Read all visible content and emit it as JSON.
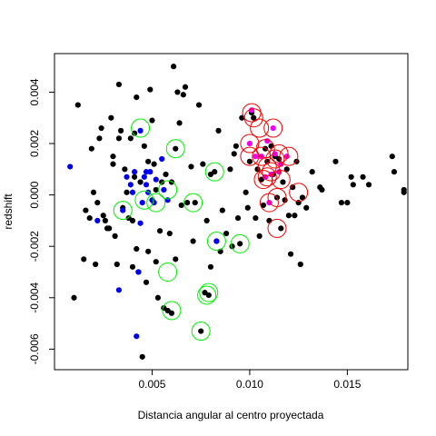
{
  "chart_data": {
    "type": "scatter",
    "xlabel": "Distancia angular al centro proyectada",
    "ylabel": "redshift",
    "xlim": [
      0.0,
      0.0181
    ],
    "ylim": [
      -0.0068,
      0.0055
    ],
    "x_ticks": [
      0.005,
      0.01,
      0.015
    ],
    "x_tick_labels": [
      "0.005",
      "0.010",
      "0.015"
    ],
    "y_ticks": [
      -0.006,
      -0.004,
      -0.002,
      0.0,
      0.002,
      0.004
    ],
    "y_tick_labels": [
      "-0.006",
      "-0.004",
      "-0.002",
      "0.000",
      "0.002",
      "0.004"
    ],
    "grid": false,
    "colors": {
      "black": "#000000",
      "blue": "#0000ee",
      "magenta": "#ee00ee",
      "green_ring": "#00ee00",
      "red_ring": "#ee0000"
    },
    "series": [
      {
        "color": "black",
        "points": [
          [
            0.001,
            -0.004
          ],
          [
            0.0012,
            0.0035
          ],
          [
            0.0015,
            -0.0025
          ],
          [
            0.0016,
            -0.0006
          ],
          [
            0.0018,
            -0.0009
          ],
          [
            0.0019,
            0.0018
          ],
          [
            0.002,
            0.0001
          ],
          [
            0.0021,
            -0.0027
          ],
          [
            0.0022,
            -0.0003
          ],
          [
            0.0023,
            0.0022
          ],
          [
            0.0024,
            0.0026
          ],
          [
            0.0025,
            -0.0008
          ],
          [
            0.0026,
            -0.001
          ],
          [
            0.0027,
            -0.0013
          ],
          [
            0.0028,
            -0.0013
          ],
          [
            0.0029,
            0.003
          ],
          [
            0.003,
            0.0012
          ],
          [
            0.003,
            0.0015
          ],
          [
            0.0031,
            -0.0016
          ],
          [
            0.0032,
            -0.0027
          ],
          [
            0.0033,
            0.0022
          ],
          [
            0.0033,
            0.0043
          ],
          [
            0.0034,
            0.0025
          ],
          [
            0.0035,
            -0.0005
          ],
          [
            0.0036,
            0.001
          ],
          [
            0.0037,
            0.0001
          ],
          [
            0.0038,
            -0.0009
          ],
          [
            0.0039,
            0.0022
          ],
          [
            0.004,
            -0.001
          ],
          [
            0.004,
            -0.0028
          ],
          [
            0.0041,
            0.0007
          ],
          [
            0.0041,
            0.0024
          ],
          [
            0.0042,
            -0.0021
          ],
          [
            0.0042,
            0.0038
          ],
          [
            0.0043,
            -0.003
          ],
          [
            0.0044,
            0.0005
          ],
          [
            0.0045,
            -0.0063
          ],
          [
            0.0046,
            0.0019
          ],
          [
            0.0047,
            -0.0034
          ],
          [
            0.0048,
            0.0013
          ],
          [
            0.0048,
            -0.0022
          ],
          [
            0.0049,
            0.0041
          ],
          [
            0.005,
            0.0029
          ],
          [
            0.0051,
            0.0012
          ],
          [
            0.0052,
            0.0002
          ],
          [
            0.0052,
            -0.0026
          ],
          [
            0.0053,
            -0.004
          ],
          [
            0.0054,
            -0.0014
          ],
          [
            0.0055,
            0.0005
          ],
          [
            0.0056,
            -0.0044
          ],
          [
            0.0057,
            0.0008
          ],
          [
            0.0058,
            -0.0045
          ],
          [
            0.0059,
            -0.0015
          ],
          [
            0.006,
            0.0005
          ],
          [
            0.006,
            -0.0046
          ],
          [
            0.0061,
            0.005
          ],
          [
            0.0062,
            0.0018
          ],
          [
            0.0062,
            -0.0025
          ],
          [
            0.0063,
            0.004
          ],
          [
            0.0064,
            0.0028
          ],
          [
            0.0065,
            -0.0004
          ],
          [
            0.0066,
            0.0039
          ],
          [
            0.0067,
            0.0042
          ],
          [
            0.0068,
            -0.0003
          ],
          [
            0.007,
            0.0011
          ],
          [
            0.0071,
            -0.0018
          ],
          [
            0.0072,
            -0.0003
          ],
          [
            0.0074,
            0.0035
          ],
          [
            0.0075,
            -0.0053
          ],
          [
            0.0076,
            0.0012
          ],
          [
            0.0077,
            -0.0038
          ],
          [
            0.0078,
            -0.001
          ],
          [
            0.0079,
            -0.0039
          ],
          [
            0.008,
            0.0008
          ],
          [
            0.008,
            -0.0028
          ],
          [
            0.0082,
            0.0009
          ],
          [
            0.0083,
            -0.0018
          ],
          [
            0.0084,
            0.0025
          ],
          [
            0.0085,
            -0.0022
          ],
          [
            0.0086,
            -0.0006
          ],
          [
            0.0088,
            -0.0015
          ],
          [
            0.009,
            0.001
          ],
          [
            0.0091,
            -0.002
          ],
          [
            0.0092,
            0.0016
          ],
          [
            0.0093,
            0.0019
          ],
          [
            0.0094,
            -0.0009
          ],
          [
            0.0095,
            -0.0019
          ],
          [
            0.0096,
            0.003
          ],
          [
            0.0098,
            0.0001
          ],
          [
            0.0099,
            -0.0005
          ],
          [
            0.01,
            0.0013
          ],
          [
            0.0101,
            0.0032
          ],
          [
            0.0102,
            0.003
          ],
          [
            0.0103,
            -0.0009
          ],
          [
            0.0104,
            0.001
          ],
          [
            0.0105,
            -0.0016
          ],
          [
            0.0106,
            0.0006
          ],
          [
            0.0107,
            -0.0004
          ],
          [
            0.0108,
            0.0018
          ],
          [
            0.0109,
            0.0013
          ],
          [
            0.011,
            -0.001
          ],
          [
            0.0111,
            0.0019
          ],
          [
            0.0112,
            0.0008
          ],
          [
            0.0113,
            0.0015
          ],
          [
            0.0114,
            -0.0001
          ],
          [
            0.0115,
            0.0014
          ],
          [
            0.0116,
            -0.0013
          ],
          [
            0.0117,
            0.0005
          ],
          [
            0.0118,
            -0.0002
          ],
          [
            0.0119,
            0.001
          ],
          [
            0.012,
            -0.0008
          ],
          [
            0.0121,
            -0.0023
          ],
          [
            0.0122,
            0.0003
          ],
          [
            0.0123,
            -0.0008
          ],
          [
            0.0124,
            0.0013
          ],
          [
            0.0125,
            -0.0003
          ],
          [
            0.0126,
            -0.0027
          ],
          [
            0.0127,
            -0.0001
          ],
          [
            0.0129,
            -0.0005
          ],
          [
            0.0132,
            0.0009
          ],
          [
            0.0136,
            0.0003
          ],
          [
            0.0137,
            0.0002
          ],
          [
            0.0144,
            0.0013
          ],
          [
            0.0147,
            -0.0003
          ],
          [
            0.015,
            -0.0003
          ],
          [
            0.0152,
            0.0007
          ],
          [
            0.0153,
            0.0004
          ],
          [
            0.0158,
            0.0007
          ],
          [
            0.0161,
            0.0004
          ],
          [
            0.0173,
            0.0015
          ],
          [
            0.0174,
            0.0009
          ],
          [
            0.0179,
            0.0001
          ],
          [
            0.0179,
            0.0002
          ]
        ]
      },
      {
        "color": "blue",
        "points": [
          [
            0.0008,
            0.0011
          ],
          [
            0.0022,
            -0.001
          ],
          [
            0.0033,
            -0.0037
          ],
          [
            0.0035,
            -0.0006
          ],
          [
            0.0037,
            0.0007
          ],
          [
            0.0039,
            0.0004
          ],
          [
            0.004,
            0.0001
          ],
          [
            0.0041,
            0.0009
          ],
          [
            0.0042,
            -0.0055
          ],
          [
            0.0043,
            -0.003
          ],
          [
            0.0044,
            -0.0011
          ],
          [
            0.0044,
            0.0025
          ],
          [
            0.0045,
            -0.0003
          ],
          [
            0.0046,
            0.0007
          ],
          [
            0.0047,
            0.0009
          ],
          [
            0.0047,
            0.0004
          ],
          [
            0.0048,
            0.0001
          ],
          [
            0.0049,
            0.0009
          ],
          [
            0.005,
            -0.0002
          ],
          [
            0.0051,
            -0.0003
          ],
          [
            0.0052,
            0.0006
          ],
          [
            0.0055,
            0.0014
          ],
          [
            0.0056,
            0.0002
          ],
          [
            0.0058,
            -0.0002
          ],
          [
            0.0083,
            -0.0018
          ]
        ]
      },
      {
        "color": "magenta",
        "points": [
          [
            0.01,
            0.002
          ],
          [
            0.0101,
            0.0033
          ],
          [
            0.0103,
            0.0015
          ],
          [
            0.0106,
            0.0015
          ],
          [
            0.0108,
            0.0007
          ],
          [
            0.0109,
            0.0021
          ],
          [
            0.011,
            -0.0003
          ],
          [
            0.0111,
            0.0008
          ],
          [
            0.0112,
            0.0026
          ],
          [
            0.0113,
            0.0016
          ],
          [
            0.0115,
            0.0009
          ],
          [
            0.0116,
            0.0012
          ],
          [
            0.0119,
            0.0015
          ]
        ]
      }
    ],
    "rings": [
      {
        "color": "green_ring",
        "points": [
          [
            0.0044,
            0.0026
          ],
          [
            0.0062,
            0.0018
          ],
          [
            0.0082,
            0.0009
          ],
          [
            0.0035,
            -0.0006
          ],
          [
            0.0046,
            -0.0002
          ],
          [
            0.0052,
            -0.0003
          ],
          [
            0.0058,
            0.0002
          ],
          [
            0.0071,
            -0.0003
          ],
          [
            0.0083,
            -0.0018
          ],
          [
            0.0095,
            -0.0019
          ],
          [
            0.0058,
            -0.003
          ],
          [
            0.0079,
            -0.0038
          ],
          [
            0.0078,
            -0.0039
          ],
          [
            0.006,
            -0.0045
          ],
          [
            0.0075,
            -0.0053
          ]
        ]
      },
      {
        "color": "red_ring",
        "points": [
          [
            0.0101,
            0.0032
          ],
          [
            0.0102,
            0.003
          ],
          [
            0.0105,
            0.0026
          ],
          [
            0.0112,
            0.0026
          ],
          [
            0.01,
            0.002
          ],
          [
            0.0108,
            0.0018
          ],
          [
            0.0115,
            0.0016
          ],
          [
            0.01,
            0.0015
          ],
          [
            0.0106,
            0.0015
          ],
          [
            0.0113,
            0.0014
          ],
          [
            0.012,
            0.0015
          ],
          [
            0.0109,
            0.0011
          ],
          [
            0.0111,
            0.0009
          ],
          [
            0.0116,
            0.0006
          ],
          [
            0.0107,
            0.0006
          ],
          [
            0.0109,
            0.0007
          ],
          [
            0.0114,
            -0.0001
          ],
          [
            0.0125,
            0.0001
          ],
          [
            0.011,
            -0.0003
          ],
          [
            0.0114,
            -0.0013
          ]
        ]
      }
    ]
  }
}
